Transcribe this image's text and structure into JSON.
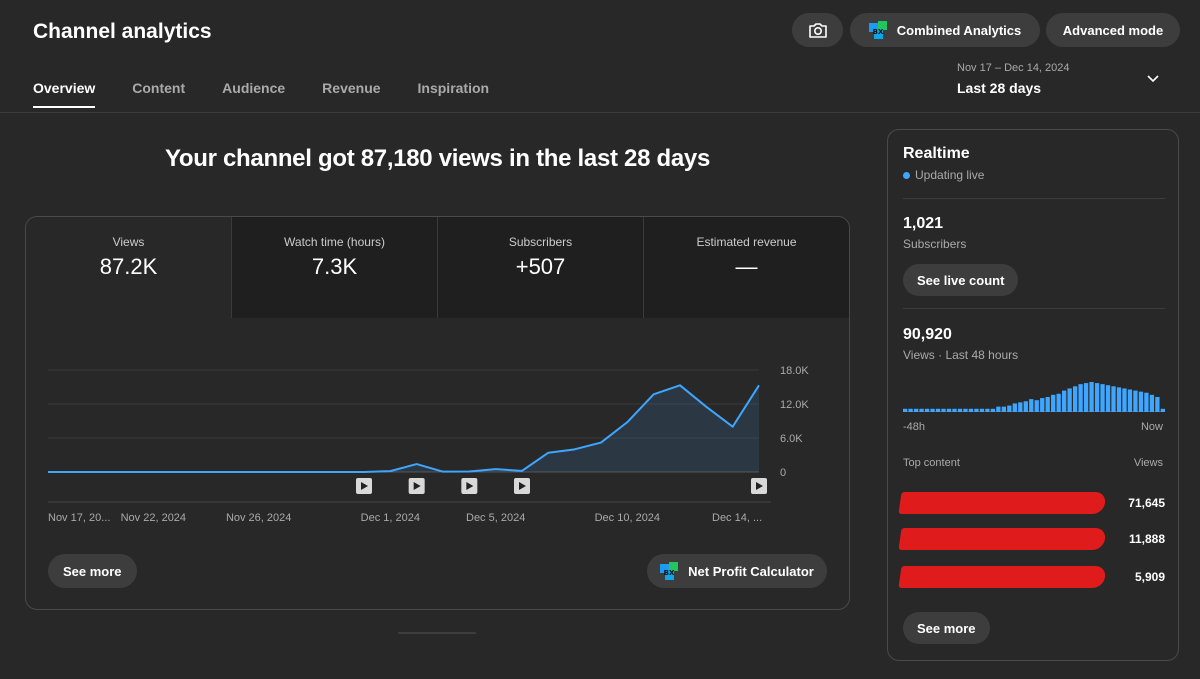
{
  "header": {
    "title": "Channel analytics",
    "camera_icon": "camera-icon",
    "combined_label": "Combined Analytics",
    "advanced_label": "Advanced mode"
  },
  "tabs": [
    {
      "label": "Overview",
      "active": true
    },
    {
      "label": "Content",
      "active": false
    },
    {
      "label": "Audience",
      "active": false
    },
    {
      "label": "Revenue",
      "active": false
    },
    {
      "label": "Inspiration",
      "active": false
    }
  ],
  "date_range": {
    "range": "Nov 17 – Dec 14, 2024",
    "label": "Last 28 days"
  },
  "headline": "Your channel got 87,180 views in the last 28 days",
  "metrics": [
    {
      "label": "Views",
      "value": "87.2K"
    },
    {
      "label": "Watch time (hours)",
      "value": "7.3K"
    },
    {
      "label": "Subscribers",
      "value": "+507"
    },
    {
      "label": "Estimated revenue",
      "value": "—"
    }
  ],
  "overview": {
    "see_more_label": "See more",
    "npc_label": "Net Profit Calculator"
  },
  "chart_data": {
    "type": "area",
    "ylim": [
      0,
      18000
    ],
    "y_ticks": [
      "0",
      "6.0K",
      "12.0K",
      "18.0K"
    ],
    "y_tick_values": [
      0,
      6000,
      12000,
      18000
    ],
    "x_tick_labels": [
      "Nov 17, 20...",
      "Nov 22, 2024",
      "Nov 26, 2024",
      "Dec 1, 2024",
      "Dec 5, 2024",
      "Dec 10, 2024",
      "Dec 14, ..."
    ],
    "x_tick_days": [
      1,
      5,
      9,
      14,
      18,
      23,
      27
    ],
    "series": [
      {
        "values": [
          10,
          10,
          10,
          10,
          10,
          10,
          10,
          10,
          10,
          10,
          10,
          10,
          10,
          150,
          1400,
          60,
          80,
          500,
          200,
          3400,
          4000,
          5200,
          8800,
          13700,
          15300,
          11500,
          8000,
          15300
        ]
      }
    ],
    "video_marker_days": [
      13,
      15,
      17,
      19,
      28
    ],
    "color": "#3ea6ff"
  },
  "realtime": {
    "title": "Realtime",
    "status": "Updating live",
    "subscribers_value": "1,021",
    "subscribers_label": "Subscribers",
    "live_count_label": "See live count",
    "views_value": "90,920",
    "views_label": "Views · Last 48 hours",
    "spark_values": [
      3,
      3,
      3,
      3,
      3,
      3,
      3,
      3,
      3,
      3,
      3,
      3,
      3,
      3,
      3,
      3,
      3,
      5,
      5,
      6,
      8,
      9,
      10,
      12,
      11,
      13,
      14,
      16,
      17,
      20,
      22,
      24,
      26,
      27,
      28,
      27,
      26,
      25,
      24,
      23,
      22,
      21,
      20,
      19,
      18,
      16,
      14,
      3
    ],
    "spark_start_label": "-48h",
    "spark_end_label": "Now",
    "top_content_label": "Top content",
    "views_col_label": "Views",
    "top_content": [
      {
        "views": "71,645"
      },
      {
        "views": "11,888"
      },
      {
        "views": "5,909"
      }
    ],
    "see_more_label": "See more"
  }
}
